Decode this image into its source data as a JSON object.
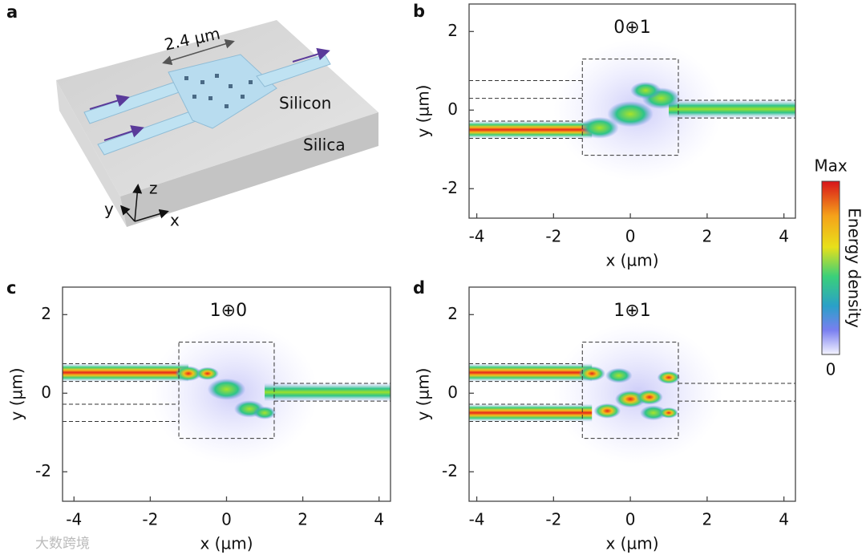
{
  "figure_a": {
    "label": "a",
    "dimension": "2.4 µm",
    "silicon": "Silicon",
    "silica": "Silica",
    "axis_x": "x",
    "axis_y": "y",
    "axis_z": "z"
  },
  "panels": [
    {
      "label": "b",
      "title": "0⊕1",
      "xlabel": "x (µm)",
      "ylabel": "y (µm)",
      "xlim": [
        -4.2,
        4.3
      ],
      "ylim": [
        -2.75,
        2.7
      ],
      "xticks": [
        -4,
        -2,
        0,
        2,
        4
      ],
      "yticks": [
        -2,
        0,
        2
      ]
    },
    {
      "label": "c",
      "title": "1⊕0",
      "xlabel": "x (µm)",
      "ylabel": "y (µm)",
      "xlim": [
        -4.3,
        4.3
      ],
      "ylim": [
        -2.75,
        2.7
      ],
      "xticks": [
        -4,
        -2,
        0,
        2,
        4
      ],
      "yticks": [
        -2,
        0,
        2
      ]
    },
    {
      "label": "d",
      "title": "1⊕1",
      "xlabel": "x (µm)",
      "ylabel": "y (µm)",
      "xlim": [
        -4.2,
        4.3
      ],
      "ylim": [
        -2.75,
        2.7
      ],
      "xticks": [
        -4,
        -2,
        0,
        2,
        4
      ],
      "yticks": [
        -2,
        0,
        2
      ]
    }
  ],
  "colorbar": {
    "max": "Max",
    "min": "0",
    "label": "Energy density"
  },
  "watermark": "大数跨境"
}
